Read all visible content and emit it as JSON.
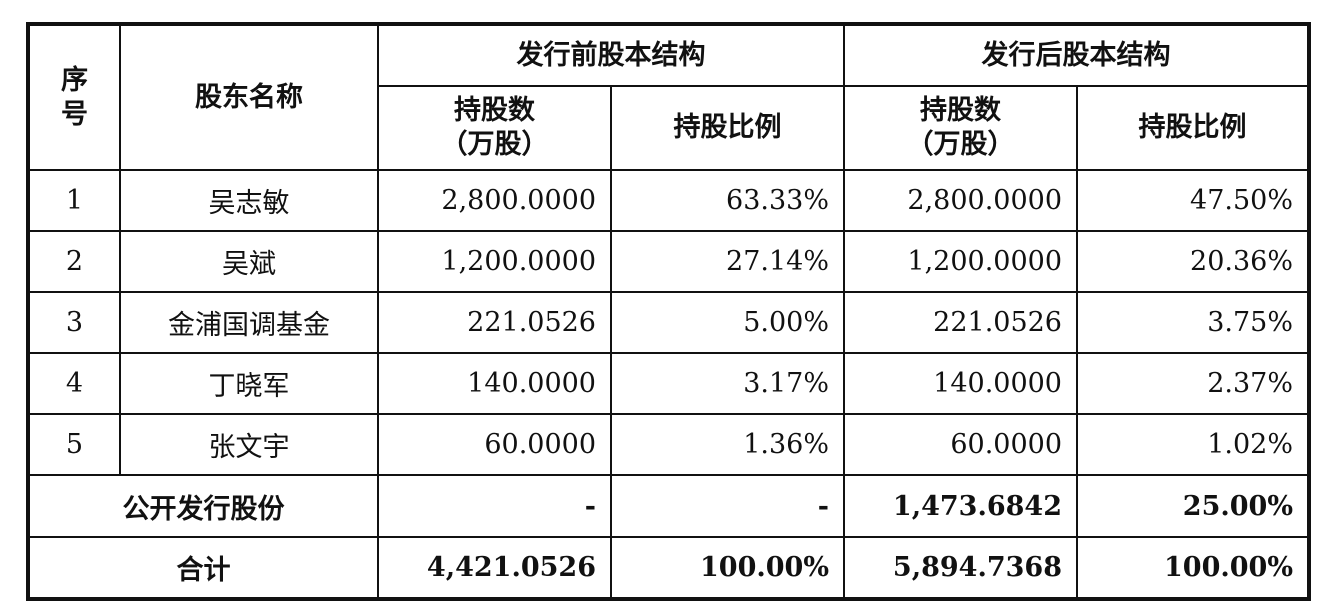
{
  "headers": {
    "index": "序号",
    "index_top": "序",
    "index_bottom": "号",
    "name": "股东名称",
    "before_group": "发行前股本结构",
    "after_group": "发行后股本结构",
    "shares_line1": "持股数",
    "shares_line2": "（万股）",
    "ratio": "持股比例"
  },
  "rows": [
    {
      "idx": "1",
      "name": "吴志敏",
      "before_shares": "2,800.0000",
      "before_ratio": "63.33%",
      "after_shares": "2,800.0000",
      "after_ratio": "47.50%"
    },
    {
      "idx": "2",
      "name": "吴斌",
      "before_shares": "1,200.0000",
      "before_ratio": "27.14%",
      "after_shares": "1,200.0000",
      "after_ratio": "20.36%"
    },
    {
      "idx": "3",
      "name": "金浦国调基金",
      "before_shares": "221.0526",
      "before_ratio": "5.00%",
      "after_shares": "221.0526",
      "after_ratio": "3.75%"
    },
    {
      "idx": "4",
      "name": "丁晓军",
      "before_shares": "140.0000",
      "before_ratio": "3.17%",
      "after_shares": "140.0000",
      "after_ratio": "2.37%"
    },
    {
      "idx": "5",
      "name": "张文宇",
      "before_shares": "60.0000",
      "before_ratio": "1.36%",
      "after_shares": "60.0000",
      "after_ratio": "1.02%"
    }
  ],
  "public_offering": {
    "label": "公开发行股份",
    "before_shares": "-",
    "before_ratio": "-",
    "after_shares": "1,473.6842",
    "after_ratio": "25.00%"
  },
  "total": {
    "label": "合计",
    "before_shares": "4,421.0526",
    "before_ratio": "100.00%",
    "after_shares": "5,894.7368",
    "after_ratio": "100.00%"
  }
}
